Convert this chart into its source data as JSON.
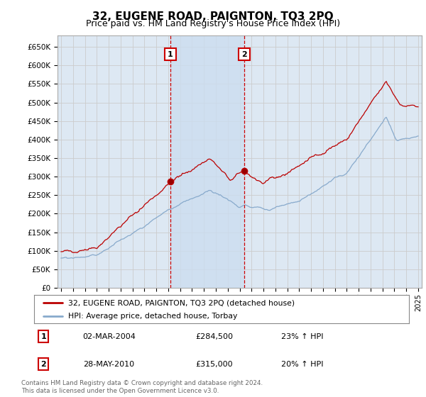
{
  "title": "32, EUGENE ROAD, PAIGNTON, TQ3 2PQ",
  "subtitle": "Price paid vs. HM Land Registry's House Price Index (HPI)",
  "ylim": [
    0,
    680000
  ],
  "sale1_year": 2004.17,
  "sale1_price": 284500,
  "sale1_label": "1",
  "sale1_date": "02-MAR-2004",
  "sale1_hpi": "23% ↑ HPI",
  "sale2_year": 2010.38,
  "sale2_price": 315000,
  "sale2_label": "2",
  "sale2_date": "28-MAY-2010",
  "sale2_hpi": "20% ↑ HPI",
  "legend_line1": "32, EUGENE ROAD, PAIGNTON, TQ3 2PQ (detached house)",
  "legend_line2": "HPI: Average price, detached house, Torbay",
  "footer": "Contains HM Land Registry data © Crown copyright and database right 2024.\nThis data is licensed under the Open Government Licence v3.0.",
  "line_color_red": "#bb0000",
  "line_color_blue": "#88aacc",
  "grid_color": "#cccccc",
  "bg_color": "#dde8f3",
  "shade_color": "#ccddf0",
  "annotation_box_color": "#cc0000",
  "vertical_line_color": "#cc0000",
  "title_fontsize": 11,
  "subtitle_fontsize": 9
}
